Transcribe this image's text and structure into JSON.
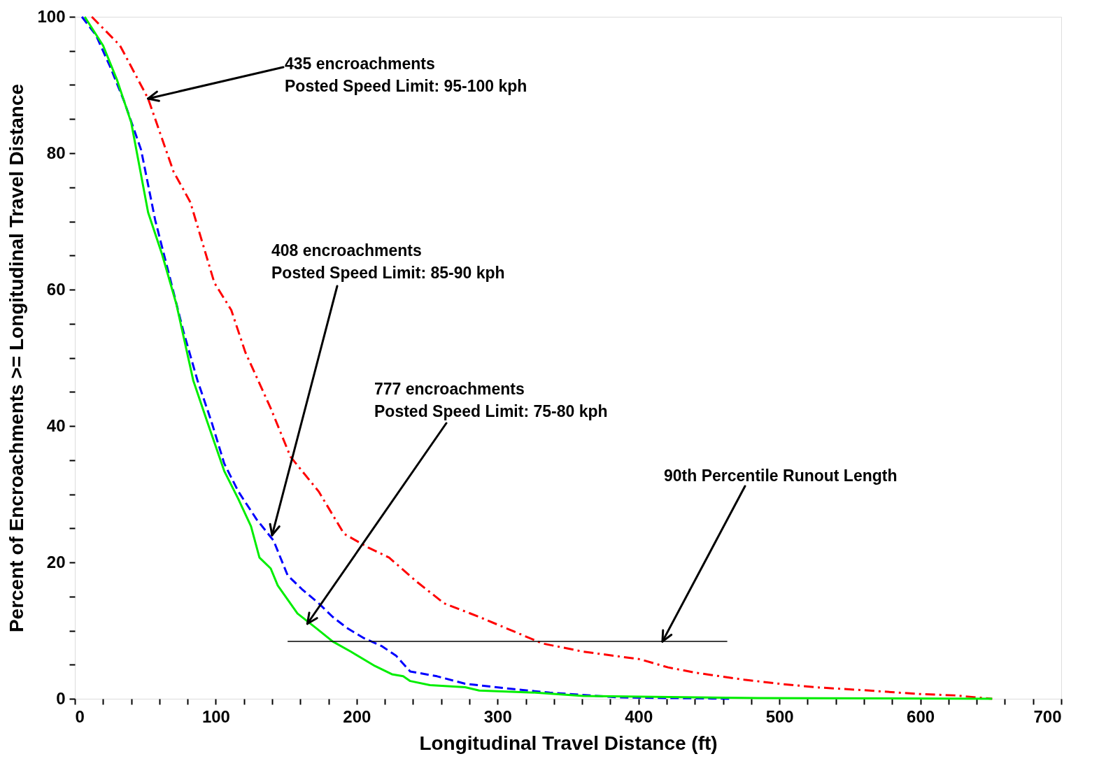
{
  "chart_data": {
    "type": "line",
    "xlabel": "Longitudinal Travel Distance (ft)",
    "ylabel": "Percent of Encroachments >= Longitudinal Travel Distance",
    "xlim": [
      0,
      700
    ],
    "ylim": [
      0,
      100
    ],
    "xticks": [
      0,
      {
        "value": 20,
        "label": null
      },
      {
        "value": 40,
        "label": null
      },
      {
        "value": 60,
        "label": null
      },
      {
        "value": 80,
        "label": null
      },
      100,
      {
        "value": 120,
        "label": null
      },
      {
        "value": 140,
        "label": null
      },
      {
        "value": 160,
        "label": null
      },
      {
        "value": 180,
        "label": null
      },
      200,
      {
        "value": 220,
        "label": null
      },
      {
        "value": 240,
        "label": null
      },
      {
        "value": 260,
        "label": null
      },
      {
        "value": 280,
        "label": null
      },
      300,
      {
        "value": 320,
        "label": null
      },
      {
        "value": 340,
        "label": null
      },
      {
        "value": 360,
        "label": null
      },
      {
        "value": 380,
        "label": null
      },
      400,
      {
        "value": 420,
        "label": null
      },
      {
        "value": 440,
        "label": null
      },
      {
        "value": 460,
        "label": null
      },
      {
        "value": 480,
        "label": null
      },
      500,
      {
        "value": 520,
        "label": null
      },
      {
        "value": 540,
        "label": null
      },
      {
        "value": 560,
        "label": null
      },
      {
        "value": 580,
        "label": null
      },
      600,
      {
        "value": 620,
        "label": null
      },
      {
        "value": 640,
        "label": null
      },
      {
        "value": 660,
        "label": null
      },
      {
        "value": 680,
        "label": null
      },
      700
    ],
    "yticks": [
      0,
      {
        "value": 5,
        "label": null
      },
      {
        "value": 10,
        "label": null
      },
      {
        "value": 15,
        "label": null
      },
      20,
      {
        "value": 25,
        "label": null
      },
      {
        "value": 30,
        "label": null
      },
      {
        "value": 35,
        "label": null
      },
      40,
      {
        "value": 45,
        "label": null
      },
      {
        "value": 50,
        "label": null
      },
      {
        "value": 55,
        "label": null
      },
      60,
      {
        "value": 65,
        "label": null
      },
      {
        "value": 70,
        "label": null
      },
      {
        "value": 75,
        "label": null
      },
      80,
      {
        "value": 85,
        "label": null
      },
      {
        "value": 90,
        "label": null
      },
      {
        "value": 95,
        "label": null
      },
      100
    ],
    "grid": false,
    "marker": "none",
    "series": [
      {
        "color": "#ff0000",
        "line_style": "dashdot",
        "x": [
          12,
          32,
          52,
          70,
          82,
          99,
          111,
          121,
          139,
          153,
          173,
          191,
          208,
          223,
          243,
          262,
          287,
          317,
          332,
          361,
          401,
          421,
          441,
          475,
          500,
          525,
          564,
          599,
          624,
          651
        ],
        "values": [
          100,
          95.8,
          88,
          77.3,
          72.8,
          61,
          57,
          50.8,
          42.6,
          35.5,
          30.4,
          24.2,
          22.2,
          20.7,
          17.1,
          14,
          12,
          9.4,
          8.1,
          6.9,
          5.8,
          4.6,
          3.8,
          2.8,
          2.2,
          1.7,
          1.2,
          0.7,
          0.5,
          0
        ]
      },
      {
        "color": "#0000ff",
        "line_style": "dashed",
        "x": [
          5,
          15,
          25,
          35,
          47,
          57,
          67,
          77,
          87,
          97,
          106,
          116,
          129,
          141,
          151,
          161,
          173,
          183,
          193,
          205,
          218,
          228,
          238,
          257,
          277,
          312,
          337,
          386,
          465
        ],
        "values": [
          100,
          97.3,
          92.7,
          87.6,
          80.5,
          70.2,
          62.1,
          53.9,
          46.7,
          40.6,
          34.5,
          30.4,
          26.3,
          23.2,
          18.1,
          16.1,
          14,
          12,
          10.4,
          8.9,
          7.7,
          6.3,
          4,
          3.3,
          2.2,
          1.4,
          0.9,
          0.2,
          0
        ]
      },
      {
        "color": "#00ee00",
        "line_style": "solid",
        "x": [
          7,
          20,
          30,
          40,
          52,
          62,
          72,
          84,
          94,
          106,
          116,
          125,
          131,
          139,
          144,
          158,
          171,
          183,
          196,
          213,
          225,
          233,
          238,
          252,
          277,
          287,
          327,
          361,
          485,
          651
        ],
        "values": [
          100,
          95.8,
          90.7,
          84.5,
          71.3,
          65.1,
          57.9,
          46.7,
          40.6,
          33.4,
          29.3,
          25.3,
          20.7,
          19.1,
          16.6,
          12.5,
          10.4,
          8.4,
          6.9,
          4.8,
          3.6,
          3.3,
          2.6,
          2,
          1.7,
          1.2,
          0.9,
          0.4,
          0.1,
          0
        ]
      },
      {
        "color": "#000000",
        "line_style": "solid",
        "x": [
          151,
          463
        ],
        "values": [
          8.4,
          8.4
        ]
      }
    ],
    "annotations": [
      {
        "text": "435 encroachments\nPosted Speed Limit: 95-100 kph",
        "x": 52,
        "y": 88
      },
      {
        "text": "408 encroachments\nPosted Speed Limit: 85-90 kph",
        "x": 140,
        "y": 24
      },
      {
        "text": "777 encroachments\nPosted Speed Limit: 75-80 kph",
        "x": 165,
        "y": 11
      },
      {
        "text": "90th Percentile Runout Length",
        "x": 417,
        "y": 8.4
      }
    ]
  }
}
